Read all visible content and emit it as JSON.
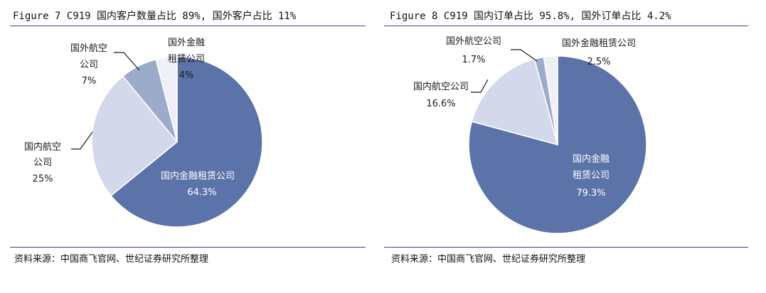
{
  "figures": [
    {
      "title": "Figure 7 C919 国内客户数量占比 89%, 国外客户占比 11%",
      "source": "资料来源：中国商飞官网、世纪证券研究所整理",
      "chart_data": {
        "type": "pie",
        "title": "Figure 7 C919 国内客户数量占比 89%, 国外客户占比 11%",
        "slices": [
          {
            "label": "国内金融租赁公司",
            "value": 64.3,
            "value_label": "64.3%",
            "color": "#5b73a9"
          },
          {
            "label": "国内航空公司",
            "value": 25,
            "value_label": "25%",
            "color": "#d3d9ea"
          },
          {
            "label": "国外航空公司",
            "value": 7,
            "value_label": "7%",
            "color": "#9dabcb"
          },
          {
            "label": "国外金融租赁公司",
            "value": 4,
            "value_label": "4%",
            "color": "#eef0f6"
          }
        ]
      }
    },
    {
      "title": "Figure 8 C919 国内订单占比 95.8%, 国外订单占比 4.2%",
      "source": "资料来源：中国商飞官网、世纪证券研究所整理",
      "chart_data": {
        "type": "pie",
        "title": "Figure 8 C919 国内订单占比 95.8%, 国外订单占比 4.2%",
        "slices": [
          {
            "label": "国内金融租赁公司",
            "value": 79.3,
            "value_label": "79.3%",
            "color": "#5b73a9"
          },
          {
            "label": "国内航空公司",
            "value": 16.6,
            "value_label": "16.6%",
            "color": "#d3d9ea"
          },
          {
            "label": "国外航空公司",
            "value": 1.7,
            "value_label": "1.7%",
            "color": "#9dabcb"
          },
          {
            "label": "国外金融租赁公司",
            "value": 2.5,
            "value_label": "2.5%",
            "color": "#eef0f6"
          }
        ]
      }
    }
  ]
}
